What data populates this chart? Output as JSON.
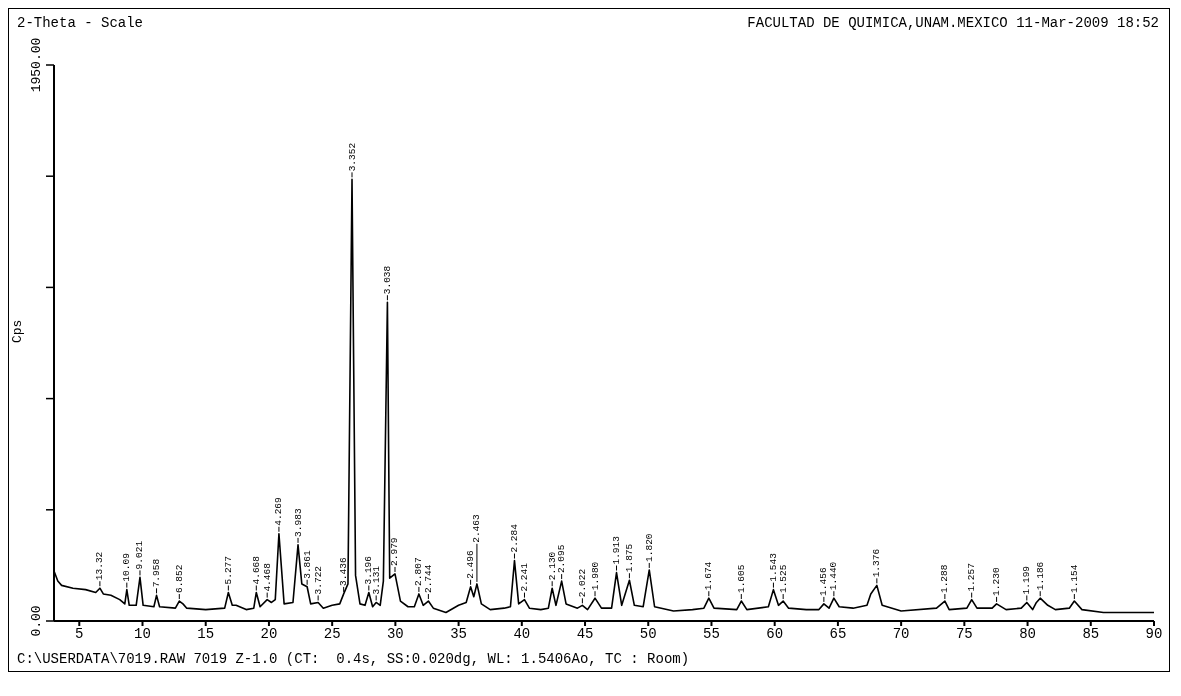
{
  "chart_data": {
    "type": "line",
    "title": "2-Theta - Scale",
    "subtitle": "FACULTAD DE QUIMICA,UNAM.MEXICO 11-Mar-2009 18:52",
    "ylabel": "Cps",
    "xlim": [
      3,
      90
    ],
    "xticks": [
      5,
      10,
      15,
      20,
      25,
      30,
      35,
      40,
      45,
      50,
      55,
      60,
      65,
      70,
      75,
      80,
      85,
      90
    ],
    "ylim": [
      0,
      1950
    ],
    "yticks": [
      {
        "value": 0,
        "label": "0.00"
      },
      {
        "value": 390,
        "label": null
      },
      {
        "value": 780,
        "label": null
      },
      {
        "value": 1170,
        "label": null
      },
      {
        "value": 1560,
        "label": null
      },
      {
        "value": 1950,
        "label": "1950.00"
      }
    ],
    "grid": false,
    "legend": false,
    "marker": "none",
    "line_style": "solid",
    "series": [
      {
        "color": "#000000",
        "x": [
          3,
          3.3,
          3.6,
          4.5,
          5.5,
          6.3,
          6.63,
          6.9,
          7.5,
          8.2,
          8.6,
          8.76,
          8.95,
          9.5,
          9.8,
          10.05,
          10.9,
          11.11,
          11.35,
          12.6,
          12.91,
          13.2,
          13.5,
          15,
          16.5,
          16.79,
          17.1,
          17.4,
          18.2,
          18.8,
          19.0,
          19.3,
          19.86,
          20.2,
          20.5,
          20.79,
          21.2,
          21.9,
          22.3,
          22.6,
          23.02,
          23.3,
          23.89,
          24.3,
          25,
          25.6,
          25.91,
          26.25,
          26.57,
          26.85,
          27.2,
          27.6,
          27.9,
          28.2,
          28.48,
          28.8,
          29.05,
          29.37,
          29.55,
          29.97,
          30.4,
          31.0,
          31.5,
          31.86,
          32.2,
          32.61,
          33,
          34,
          35,
          35.6,
          35.95,
          36.2,
          36.45,
          36.8,
          37.5,
          38.6,
          39.1,
          39.42,
          39.75,
          40.21,
          40.6,
          41.5,
          42.1,
          42.4,
          42.7,
          43.15,
          43.5,
          44.4,
          44.79,
          45.2,
          45.79,
          46.3,
          47.1,
          47.49,
          47.9,
          48.51,
          48.9,
          49.6,
          50.08,
          50.5,
          52,
          53.5,
          54.4,
          54.79,
          55.2,
          57,
          57.36,
          57.8,
          59.5,
          59.9,
          60.3,
          60.67,
          61.1,
          62.5,
          63.5,
          63.89,
          64.3,
          64.68,
          65.1,
          66.2,
          67.3,
          67.6,
          68.08,
          68.5,
          70,
          72.8,
          73.46,
          73.8,
          75.2,
          75.58,
          76,
          77.2,
          77.55,
          78.3,
          79.5,
          79.94,
          80.4,
          80.7,
          81.0,
          81.6,
          82.2,
          83.3,
          83.7,
          84.3,
          86,
          88,
          90
        ],
        "values": [
          175,
          140,
          125,
          115,
          110,
          100,
          115,
          95,
          90,
          75,
          60,
          110,
          55,
          55,
          153,
          55,
          50,
          90,
          50,
          45,
          70,
          60,
          45,
          40,
          45,
          100,
          55,
          55,
          40,
          45,
          100,
          50,
          75,
          65,
          75,
          306,
          60,
          65,
          267,
          130,
          120,
          60,
          65,
          45,
          55,
          60,
          95,
          130,
          1549,
          160,
          60,
          55,
          100,
          50,
          65,
          55,
          140,
          1118,
          150,
          165,
          70,
          50,
          50,
          95,
          55,
          70,
          45,
          30,
          55,
          65,
          120,
          85,
          130,
          60,
          40,
          45,
          50,
          212,
          60,
          75,
          45,
          40,
          45,
          115,
          55,
          140,
          60,
          45,
          55,
          40,
          80,
          45,
          45,
          170,
          55,
          143,
          55,
          50,
          179,
          50,
          35,
          40,
          45,
          80,
          45,
          40,
          70,
          40,
          50,
          110,
          55,
          70,
          45,
          40,
          40,
          60,
          45,
          80,
          50,
          45,
          55,
          95,
          125,
          55,
          35,
          45,
          70,
          40,
          45,
          75,
          45,
          45,
          60,
          40,
          45,
          65,
          40,
          65,
          80,
          55,
          40,
          45,
          70,
          40,
          30,
          30,
          30
        ]
      }
    ],
    "annotations": [
      {
        "text": "13.32",
        "x": 6.63,
        "y": 115
      },
      {
        "text": "10.09",
        "x": 8.76,
        "y": 110
      },
      {
        "text": "9.021",
        "x": 9.8,
        "y": 153
      },
      {
        "text": "7.958",
        "x": 11.11,
        "y": 90
      },
      {
        "text": "6.852",
        "x": 12.91,
        "y": 70
      },
      {
        "text": "5.277",
        "x": 16.79,
        "y": 100
      },
      {
        "text": "4.668",
        "x": 19.0,
        "y": 100
      },
      {
        "text": "4.468",
        "x": 19.86,
        "y": 75
      },
      {
        "text": "4.269",
        "x": 20.79,
        "y": 306
      },
      {
        "text": "3.983",
        "x": 22.3,
        "y": 267
      },
      {
        "text": "3.861",
        "x": 23.02,
        "y": 120
      },
      {
        "text": "3.722",
        "x": 23.89,
        "y": 65
      },
      {
        "text": "3.436",
        "x": 25.91,
        "y": 95
      },
      {
        "text": "3.352",
        "x": 26.57,
        "y": 1549
      },
      {
        "text": "3.196",
        "x": 27.9,
        "y": 100
      },
      {
        "text": "3.131",
        "x": 28.48,
        "y": 65
      },
      {
        "text": "3.038",
        "x": 29.37,
        "y": 1118
      },
      {
        "text": "2.979",
        "x": 29.97,
        "y": 165
      },
      {
        "text": "2.807",
        "x": 31.86,
        "y": 95
      },
      {
        "text": "2.744",
        "x": 32.61,
        "y": 70
      },
      {
        "text": "2.496",
        "x": 35.95,
        "y": 120
      },
      {
        "text": "2.463",
        "x": 36.45,
        "y": 130
      },
      {
        "text": "2.284",
        "x": 39.42,
        "y": 212
      },
      {
        "text": "2.241",
        "x": 40.21,
        "y": 75
      },
      {
        "text": "2.130",
        "x": 42.4,
        "y": 115
      },
      {
        "text": "2.095",
        "x": 43.15,
        "y": 140
      },
      {
        "text": "2.022",
        "x": 44.79,
        "y": 55
      },
      {
        "text": "1.980",
        "x": 45.79,
        "y": 80
      },
      {
        "text": "1.913",
        "x": 47.49,
        "y": 170
      },
      {
        "text": "1.875",
        "x": 48.51,
        "y": 143
      },
      {
        "text": "1.820",
        "x": 50.08,
        "y": 179
      },
      {
        "text": "1.674",
        "x": 54.79,
        "y": 80
      },
      {
        "text": "1.605",
        "x": 57.36,
        "y": 70
      },
      {
        "text": "1.543",
        "x": 59.9,
        "y": 110
      },
      {
        "text": "1.525",
        "x": 60.67,
        "y": 70
      },
      {
        "text": "1.456",
        "x": 63.89,
        "y": 60
      },
      {
        "text": "1.440",
        "x": 64.68,
        "y": 80
      },
      {
        "text": "1.376",
        "x": 68.08,
        "y": 125
      },
      {
        "text": "1.288",
        "x": 73.46,
        "y": 70
      },
      {
        "text": "1.257",
        "x": 75.58,
        "y": 75
      },
      {
        "text": "1.230",
        "x": 77.55,
        "y": 60
      },
      {
        "text": "1.199",
        "x": 79.94,
        "y": 65
      },
      {
        "text": "1.186",
        "x": 81.0,
        "y": 80
      },
      {
        "text": "1.154",
        "x": 83.7,
        "y": 70
      },
      "C:\\USERDATA\\7019.RAW 7019 Z-1.0 (CT:  0.4s, SS:0.020dg, WL: 1.5406Ao, TC : Room)"
    ]
  }
}
